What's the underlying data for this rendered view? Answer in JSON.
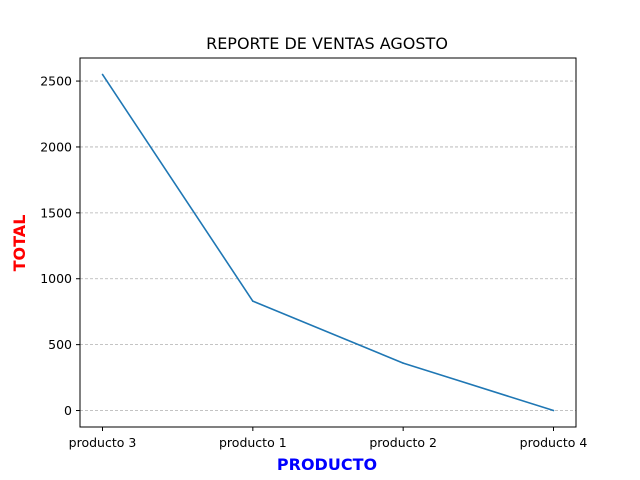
{
  "chart_data": {
    "type": "line",
    "title": "REPORTE DE VENTAS AGOSTO",
    "xlabel": "PRODUCTO",
    "ylabel": "TOTAL",
    "categories": [
      "producto 3",
      "producto 1",
      "producto 2",
      "producto 4"
    ],
    "series": [
      {
        "values": [
          2550,
          830,
          360,
          0
        ]
      }
    ],
    "ylim": [
      -125,
      2675
    ],
    "yticks": [
      "0",
      "500",
      "1000",
      "1500",
      "2000",
      "2500"
    ],
    "grid": "y-dashed",
    "colors": {
      "line": "#1f77b4",
      "xlabel": "#0000ff",
      "ylabel": "#ff0000",
      "grid": "#b0b0b0",
      "axes": "#000000"
    }
  }
}
